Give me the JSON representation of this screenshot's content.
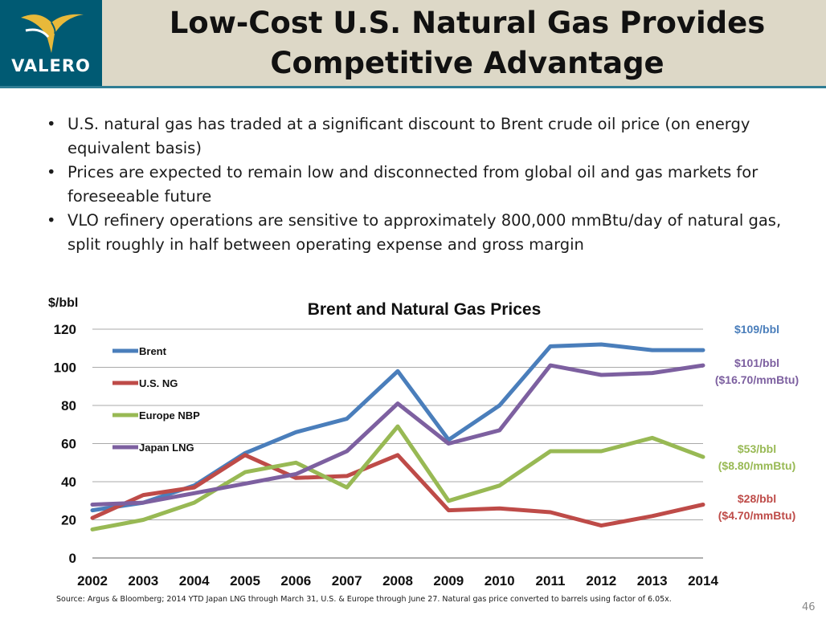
{
  "brand": {
    "name": "VALERO",
    "colors": {
      "logo_bg": "#005a73",
      "header_bg": "#ddd8c7",
      "accent": "#2f7d94",
      "logo_mark": "#e8b93a"
    }
  },
  "slide": {
    "title_line1": "Low-Cost U.S. Natural Gas Provides",
    "title_line2": "Competitive Advantage",
    "bullets": [
      "U.S. natural gas has traded at a significant discount to Brent crude oil price (on energy equivalent basis)",
      "Prices are expected to remain low and disconnected from global oil and gas markets for foreseeable future",
      "VLO refinery operations are sensitive to approximately 800,000 mmBtu/day of natural gas, split roughly in half between operating expense and gross margin"
    ],
    "source": "Source:  Argus & Bloomberg; 2014 YTD Japan LNG through March 31, U.S. & Europe through June 27.  Natural gas price converted to barrels using factor of 6.05x.",
    "page_number": "46"
  },
  "chart_data": {
    "type": "line",
    "title": "Brent and Natural Gas Prices",
    "ylabel": "$/bbl",
    "xlabel": "",
    "ylim": [
      0,
      120
    ],
    "yticks": [
      0,
      20,
      40,
      60,
      80,
      100,
      120
    ],
    "grid": true,
    "legend_position": "top-left",
    "x": [
      "2002",
      "2003",
      "2004",
      "2005",
      "2006",
      "2007",
      "2008",
      "2009",
      "2010",
      "2011",
      "2012",
      "2013",
      "2014"
    ],
    "series": [
      {
        "name": "Brent",
        "color": "#4a7ebb",
        "values": [
          25,
          29,
          38,
          55,
          66,
          73,
          98,
          62,
          80,
          111,
          112,
          109,
          109
        ]
      },
      {
        "name": "U.S. NG",
        "color": "#be4b48",
        "values": [
          21,
          33,
          37,
          54,
          42,
          43,
          54,
          25,
          26,
          24,
          17,
          22,
          28
        ]
      },
      {
        "name": "Europe NBP",
        "color": "#98b954",
        "values": [
          15,
          20,
          29,
          45,
          50,
          37,
          69,
          30,
          38,
          56,
          56,
          63,
          53
        ]
      },
      {
        "name": "Japan LNG",
        "color": "#7d60a0",
        "values": [
          28,
          29,
          34,
          39,
          44,
          56,
          81,
          60,
          67,
          101,
          96,
          97,
          101
        ]
      }
    ],
    "annotations": [
      {
        "series": "Brent",
        "lines": [
          "$109/bbl"
        ],
        "color": "#4a7ebb"
      },
      {
        "series": "Japan LNG",
        "lines": [
          "$101/bbl",
          "($16.70/mmBtu)"
        ],
        "color": "#7d60a0"
      },
      {
        "series": "Europe NBP",
        "lines": [
          "$53/bbl",
          "($8.80/mmBtu)"
        ],
        "color": "#98b954"
      },
      {
        "series": "U.S. NG",
        "lines": [
          "$28/bbl",
          "($4.70/mmBtu)"
        ],
        "color": "#be4b48"
      }
    ]
  }
}
